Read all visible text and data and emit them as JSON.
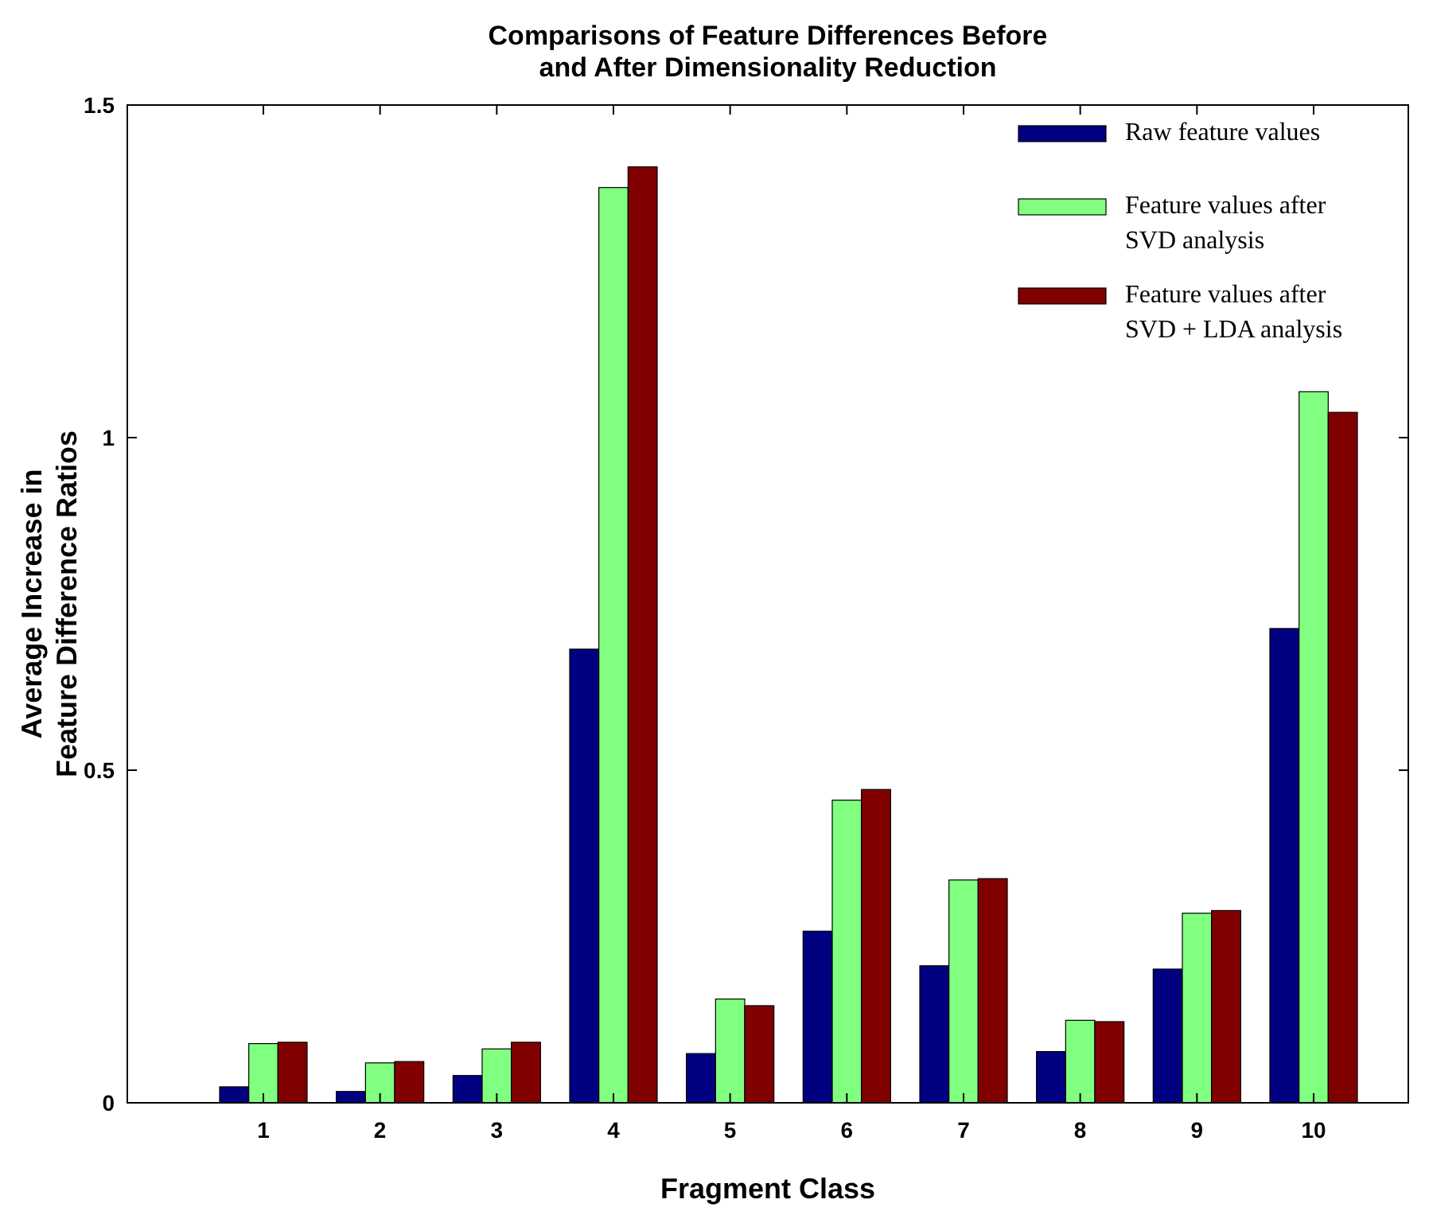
{
  "chart_data": {
    "type": "bar",
    "title": "Comparisons of Feature Differences Before\nand After Dimensionality Reduction",
    "xlabel": "Fragment Class",
    "ylabel": "Average Increase in\nFeature Difference Ratios",
    "categories": [
      "1",
      "2",
      "3",
      "4",
      "5",
      "6",
      "7",
      "8",
      "9",
      "10"
    ],
    "series": [
      {
        "name": "Raw feature values",
        "color": "#000080",
        "values": [
          0.024,
          0.017,
          0.041,
          0.682,
          0.074,
          0.258,
          0.206,
          0.077,
          0.201,
          0.713
        ]
      },
      {
        "name": "Feature values after\nSVD analysis",
        "color": "#80ff80",
        "values": [
          0.089,
          0.06,
          0.081,
          1.376,
          0.156,
          0.455,
          0.335,
          0.124,
          0.285,
          1.069
        ]
      },
      {
        "name": "Feature values after\nSVD + LDA analysis",
        "color": "#800000",
        "values": [
          0.091,
          0.062,
          0.091,
          1.407,
          0.146,
          0.471,
          0.337,
          0.122,
          0.289,
          1.038
        ]
      }
    ],
    "ylim": [
      0,
      1.5
    ],
    "yticks": [
      0,
      0.5,
      1,
      1.5
    ],
    "legend": "top right",
    "grid": false
  }
}
